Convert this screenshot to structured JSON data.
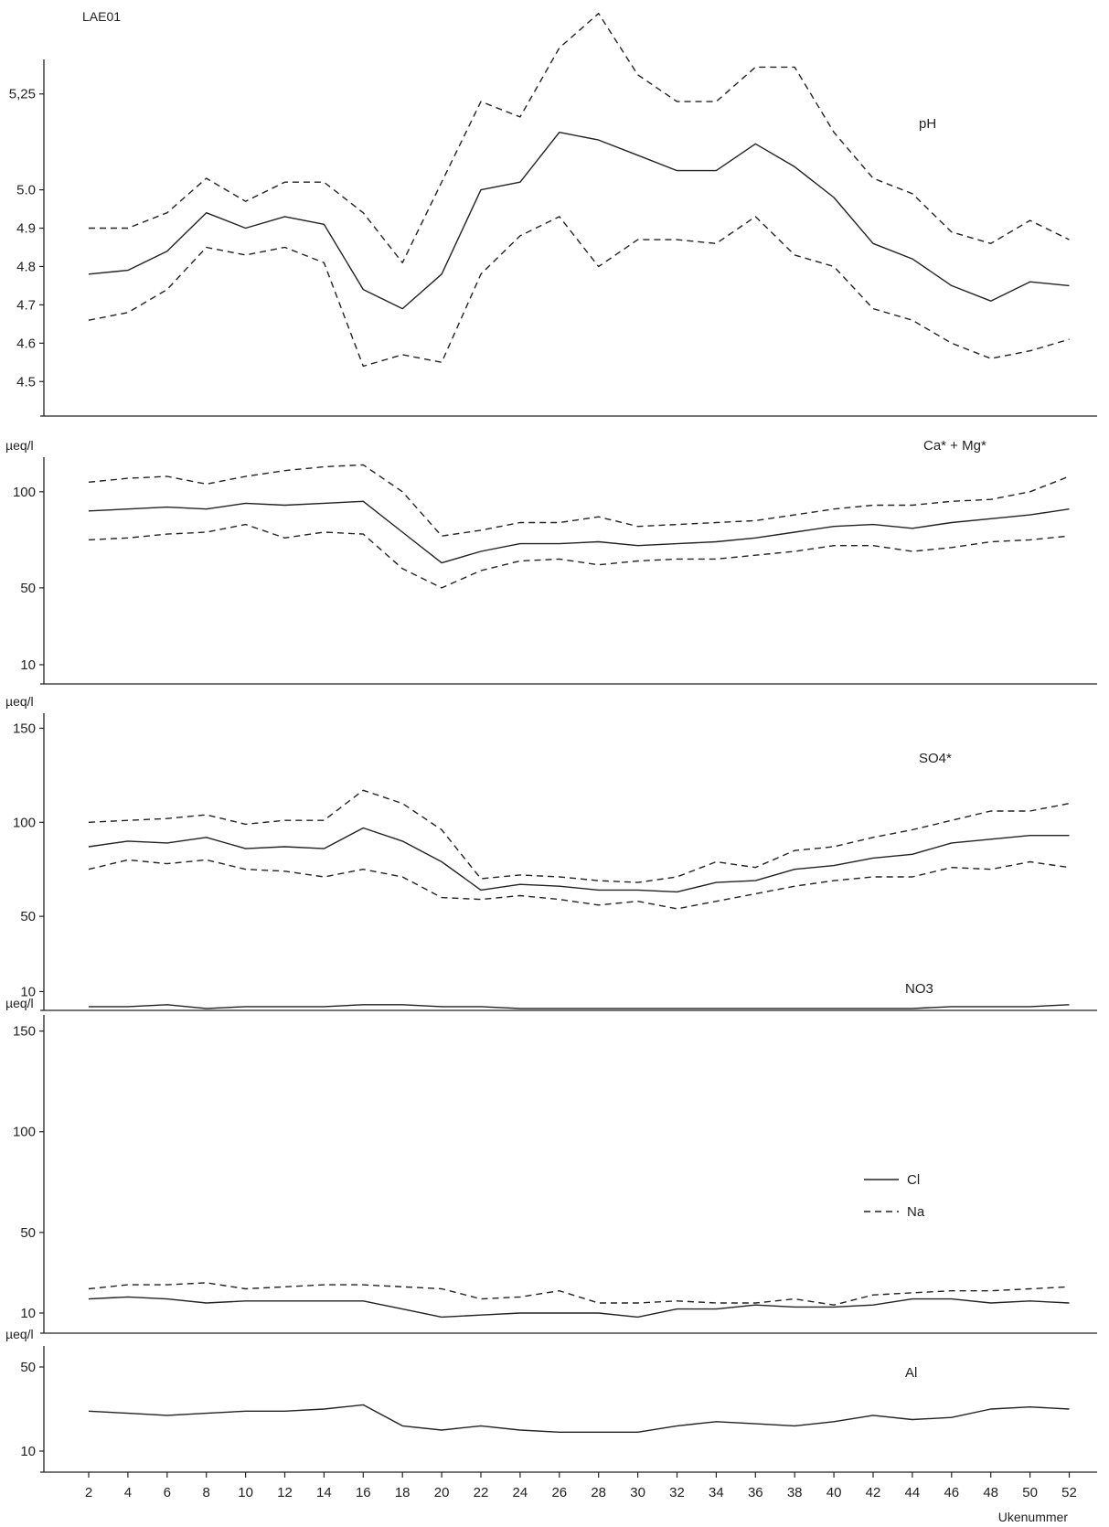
{
  "station": "LAE01",
  "x_axis_label": "Ukenummer",
  "weeks": [
    2,
    4,
    6,
    8,
    10,
    12,
    14,
    16,
    18,
    20,
    22,
    24,
    26,
    28,
    30,
    32,
    34,
    36,
    38,
    40,
    42,
    44,
    46,
    48,
    50,
    52
  ],
  "chart_data": [
    {
      "type": "line",
      "title": "pH",
      "ylabel": "",
      "ylim": [
        4.41,
        5.34
      ],
      "yticks": [
        {
          "v": 4.5,
          "label": "4.5"
        },
        {
          "v": 4.6,
          "label": "4.6"
        },
        {
          "v": 4.7,
          "label": "4.7"
        },
        {
          "v": 4.8,
          "label": "4.8"
        },
        {
          "v": 4.9,
          "label": "4.9"
        },
        {
          "v": 5.0,
          "label": "5.0"
        },
        {
          "v": 5.25,
          "label": "5,25"
        }
      ],
      "series": [
        {
          "style": "solid",
          "values": [
            4.78,
            4.79,
            4.84,
            4.94,
            4.9,
            4.93,
            4.91,
            4.74,
            4.69,
            4.78,
            5.0,
            5.02,
            5.15,
            5.13,
            5.09,
            5.05,
            5.05,
            5.12,
            5.06,
            4.98,
            4.86,
            4.82,
            4.75,
            4.71,
            4.76,
            4.75
          ]
        },
        {
          "style": "dashed",
          "values": [
            4.9,
            4.9,
            4.94,
            5.03,
            4.97,
            5.02,
            5.02,
            4.94,
            4.81,
            5.02,
            5.23,
            5.19,
            5.37,
            5.46,
            5.3,
            5.23,
            5.23,
            5.32,
            5.32,
            5.15,
            5.03,
            4.99,
            4.89,
            4.86,
            4.92,
            4.87
          ]
        },
        {
          "style": "dashed",
          "values": [
            4.66,
            4.68,
            4.74,
            4.85,
            4.83,
            4.85,
            4.81,
            4.54,
            4.57,
            4.55,
            4.78,
            4.88,
            4.93,
            4.8,
            4.87,
            4.87,
            4.86,
            4.93,
            4.83,
            4.8,
            4.69,
            4.66,
            4.6,
            4.56,
            4.58,
            4.61
          ]
        }
      ]
    },
    {
      "type": "line",
      "title": "Ca* + Mg*",
      "ylabel": "µeq/l",
      "ylim": [
        0,
        118
      ],
      "yticks": [
        {
          "v": 10,
          "label": "10"
        },
        {
          "v": 50,
          "label": "50"
        },
        {
          "v": 100,
          "label": "100"
        }
      ],
      "series": [
        {
          "style": "solid",
          "values": [
            90,
            91,
            92,
            91,
            94,
            93,
            94,
            95,
            79,
            63,
            69,
            73,
            73,
            74,
            72,
            73,
            74,
            76,
            79,
            82,
            83,
            81,
            84,
            86,
            88,
            91
          ]
        },
        {
          "style": "dashed",
          "values": [
            105,
            107,
            108,
            104,
            108,
            111,
            113,
            114,
            100,
            77,
            80,
            84,
            84,
            87,
            82,
            83,
            84,
            85,
            88,
            91,
            93,
            93,
            95,
            96,
            100,
            108
          ]
        },
        {
          "style": "dashed",
          "values": [
            75,
            76,
            78,
            79,
            83,
            76,
            79,
            78,
            60,
            50,
            59,
            64,
            65,
            62,
            64,
            65,
            65,
            67,
            69,
            72,
            72,
            69,
            71,
            74,
            75,
            77
          ]
        }
      ]
    },
    {
      "type": "line",
      "title": "SO4*",
      "ylabel": "µeq/l",
      "ylim": [
        0,
        158
      ],
      "yticks": [
        {
          "v": 10,
          "label": "10"
        },
        {
          "v": 50,
          "label": "50"
        },
        {
          "v": 100,
          "label": "100"
        },
        {
          "v": 150,
          "label": "150"
        }
      ],
      "series": [
        {
          "style": "solid",
          "values": [
            87,
            90,
            89,
            92,
            86,
            87,
            86,
            97,
            90,
            79,
            64,
            67,
            66,
            64,
            64,
            63,
            68,
            69,
            75,
            77,
            81,
            83,
            89,
            91,
            93,
            93
          ]
        },
        {
          "style": "dashed",
          "values": [
            100,
            101,
            102,
            104,
            99,
            101,
            101,
            117,
            110,
            96,
            70,
            72,
            71,
            69,
            68,
            71,
            79,
            76,
            85,
            87,
            92,
            96,
            101,
            106,
            106,
            110
          ]
        },
        {
          "style": "dashed",
          "values": [
            75,
            80,
            78,
            80,
            75,
            74,
            71,
            75,
            71,
            60,
            59,
            61,
            59,
            56,
            58,
            54,
            58,
            62,
            66,
            69,
            71,
            71,
            76,
            75,
            79,
            76
          ]
        },
        {
          "style": "solid",
          "name": "NO3",
          "values": [
            2,
            2,
            3,
            1,
            2,
            2,
            2,
            3,
            3,
            2,
            2,
            1,
            1,
            1,
            1,
            1,
            1,
            1,
            1,
            1,
            1,
            1,
            2,
            2,
            2,
            3
          ]
        }
      ],
      "annotation": "NO3"
    },
    {
      "type": "line",
      "title": "",
      "ylabel": "µeq/l",
      "ylim": [
        0,
        158
      ],
      "yticks": [
        {
          "v": 10,
          "label": "10"
        },
        {
          "v": 50,
          "label": "50"
        },
        {
          "v": 100,
          "label": "100"
        },
        {
          "v": 150,
          "label": "150"
        }
      ],
      "legend": [
        "Cl",
        "Na"
      ],
      "series": [
        {
          "name": "Cl",
          "style": "solid",
          "values": [
            17,
            18,
            17,
            15,
            16,
            16,
            16,
            16,
            12,
            8,
            9,
            10,
            10,
            10,
            8,
            12,
            12,
            14,
            13,
            13,
            14,
            17,
            17,
            15,
            16,
            15
          ]
        },
        {
          "name": "Na",
          "style": "dashed",
          "values": [
            22,
            24,
            24,
            25,
            22,
            23,
            24,
            24,
            23,
            22,
            17,
            18,
            21,
            15,
            15,
            16,
            15,
            15,
            17,
            14,
            19,
            20,
            21,
            21,
            22,
            23
          ]
        }
      ]
    },
    {
      "type": "line",
      "title": "Al",
      "ylabel": "µeq/l",
      "ylim": [
        0,
        60
      ],
      "yticks": [
        {
          "v": 10,
          "label": "10"
        },
        {
          "v": 50,
          "label": "50"
        }
      ],
      "series": [
        {
          "style": "solid",
          "values": [
            29,
            28,
            27,
            28,
            29,
            29,
            30,
            32,
            22,
            20,
            22,
            20,
            19,
            19,
            19,
            22,
            24,
            23,
            22,
            24,
            27,
            25,
            26,
            30,
            31,
            30
          ]
        }
      ]
    }
  ]
}
